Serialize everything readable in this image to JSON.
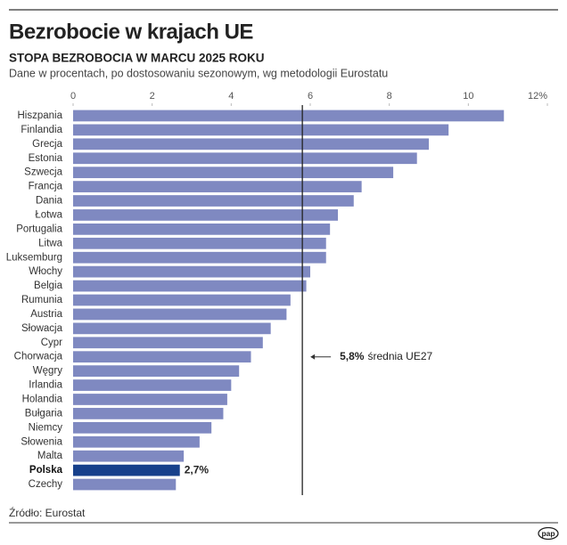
{
  "chart_data": {
    "type": "bar",
    "orientation": "horizontal",
    "title": "Bezrobocie w krajach UE",
    "subtitle": "STOPA BEZROBOCIA W MARCU 2025 ROKU",
    "note": "Dane w procentach, po dostosowaniu sezonowym, wg metodologii Eurostatu",
    "source": "Źródło: Eurostat",
    "logo": "pap",
    "categories": [
      "Hiszpania",
      "Finlandia",
      "Grecja",
      "Estonia",
      "Szwecja",
      "Francja",
      "Dania",
      "Łotwa",
      "Portugalia",
      "Litwa",
      "Luksemburg",
      "Włochy",
      "Belgia",
      "Rumunia",
      "Austria",
      "Słowacja",
      "Cypr",
      "Chorwacja",
      "Węgry",
      "Irlandia",
      "Holandia",
      "Bułgaria",
      "Niemcy",
      "Słowenia",
      "Malta",
      "Polska",
      "Czechy"
    ],
    "values": [
      10.9,
      9.5,
      9.0,
      8.7,
      8.1,
      7.3,
      7.1,
      6.7,
      6.5,
      6.4,
      6.4,
      6.0,
      5.9,
      5.5,
      5.4,
      5.0,
      4.8,
      4.5,
      4.2,
      4.0,
      3.9,
      3.8,
      3.5,
      3.2,
      2.8,
      2.7,
      2.6
    ],
    "value_labels": [
      null,
      null,
      null,
      null,
      null,
      null,
      null,
      null,
      null,
      null,
      null,
      null,
      null,
      null,
      null,
      null,
      null,
      null,
      null,
      null,
      null,
      null,
      null,
      null,
      null,
      "2,7%",
      null
    ],
    "colors": [
      "#7f89c1",
      "#7f89c1",
      "#7f89c1",
      "#7f89c1",
      "#7f89c1",
      "#7f89c1",
      "#7f89c1",
      "#7f89c1",
      "#7f89c1",
      "#7f89c1",
      "#7f89c1",
      "#7f89c1",
      "#7f89c1",
      "#7f89c1",
      "#7f89c1",
      "#7f89c1",
      "#7f89c1",
      "#7f89c1",
      "#7f89c1",
      "#7f89c1",
      "#7f89c1",
      "#7f89c1",
      "#7f89c1",
      "#7f89c1",
      "#7f89c1",
      "#17408b",
      "#7f89c1"
    ],
    "xlim": [
      0,
      12
    ],
    "xticks": [
      0,
      2,
      4,
      6,
      8,
      10,
      {
        "value": 12,
        "label": "12%"
      }
    ],
    "reference_line": {
      "value": 5.8,
      "value_label": "5,8%",
      "label": "średnia UE27"
    }
  }
}
